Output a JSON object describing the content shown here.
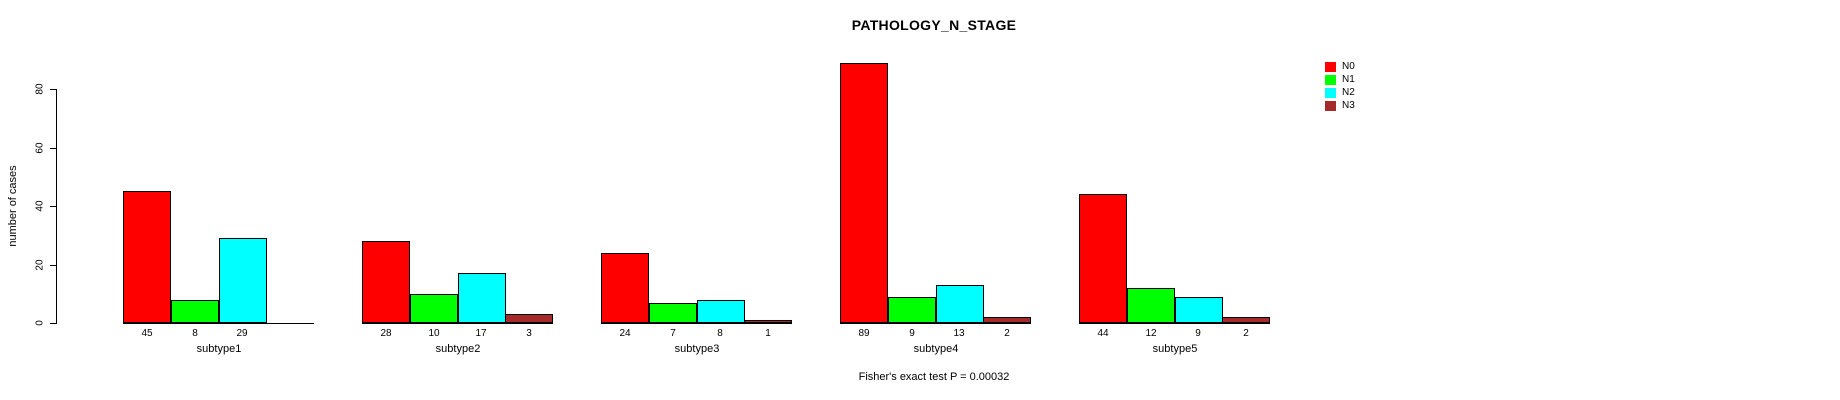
{
  "title": "PATHOLOGY_N_STAGE",
  "ylabel": "number of cases",
  "footer": "Fisher's exact test P = 0.00032",
  "chart_data": {
    "type": "bar",
    "title": "PATHOLOGY_N_STAGE",
    "xlabel": "",
    "ylabel": "number of cases",
    "categories": [
      "subtype1",
      "subtype2",
      "subtype3",
      "subtype4",
      "subtype5"
    ],
    "series": [
      {
        "name": "N0",
        "color": "#ff0000",
        "values": [
          45,
          28,
          24,
          89,
          44
        ]
      },
      {
        "name": "N1",
        "color": "#00ff00",
        "values": [
          8,
          10,
          7,
          9,
          12
        ]
      },
      {
        "name": "N2",
        "color": "#00ffff",
        "values": [
          29,
          17,
          8,
          13,
          9
        ]
      },
      {
        "name": "N3",
        "color": "#a52a2a",
        "values": [
          0,
          3,
          1,
          2,
          2
        ]
      }
    ],
    "yticks": [
      0,
      20,
      40,
      60,
      80
    ],
    "ylim": [
      0,
      89
    ],
    "grid": false,
    "legend_position": "top-right",
    "value_labels": "shown under bars, hidden when value is 0",
    "annotation": "Fisher's exact test P = 0.00032"
  }
}
